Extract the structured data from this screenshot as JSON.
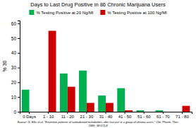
{
  "chart_data": {
    "type": "bar",
    "title": "Days to Last Drug Positive in 86 Chronic Marijuana Users",
    "categories": [
      "0 Days",
      "1 - 10",
      "11 - 20",
      "21 - 30",
      "31 - 40",
      "41 - 50",
      "51 - 60",
      "61 - 70",
      "71 - 80"
    ],
    "series": [
      {
        "name": "% Testing Positive at 20 Ng/Ml",
        "color": "#00b050",
        "values": [
          15,
          0,
          26,
          28,
          11,
          16,
          1,
          1,
          0
        ]
      },
      {
        "name": "% Testing Positive at 100 Ng/Ml",
        "color": "#cc0000",
        "values": [
          0,
          55,
          17,
          6,
          6,
          1,
          0,
          0,
          4
        ]
      }
    ],
    "ylabel": "% 30",
    "ylim": [
      0,
      62
    ],
    "yticks": [
      0,
      10,
      20,
      30,
      40,
      50,
      60
    ],
    "grid": false,
    "legend": "top",
    "source": "Source: G. Ellis et al, \"Excretion patterns of cannabinoid metabolites after last use in a group of chronic users,\" Clin. Pharm. Ther.\n1985;  38:572-8"
  }
}
